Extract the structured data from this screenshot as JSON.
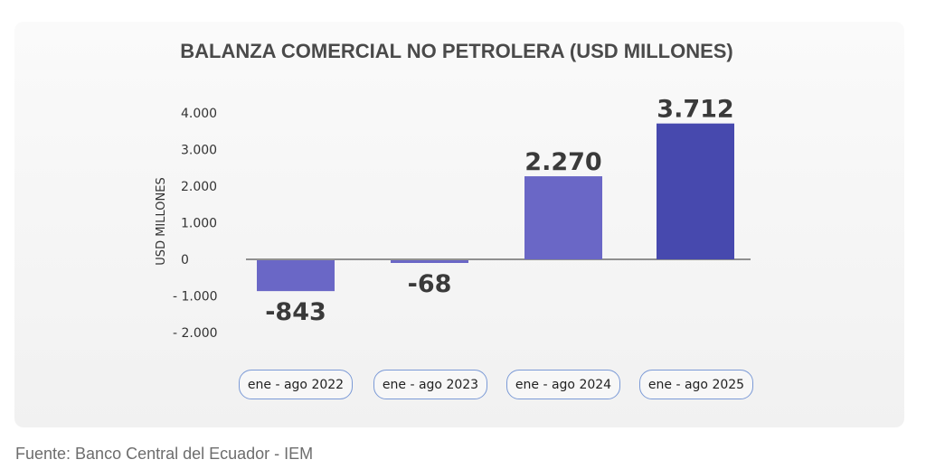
{
  "chart_data": {
    "type": "bar",
    "title": "BALANZA COMERCIAL NO PETROLERA (USD MILLONES)",
    "xlabel": "",
    "ylabel": "USD MILLONES",
    "ylim": [
      -2000,
      4000
    ],
    "yticks": [
      4000,
      3000,
      2000,
      1000,
      0,
      -1000,
      -2000
    ],
    "ytick_labels": [
      "4.000",
      "3.000",
      "2.000",
      "1.000",
      "0",
      "- 1.000",
      "- 2.000"
    ],
    "categories": [
      "ene - ago 2022",
      "ene - ago 2023",
      "ene - ago 2024",
      "ene - ago 2025"
    ],
    "values": [
      -843,
      -68,
      2270,
      3712
    ],
    "data_labels": [
      "-843",
      "-68",
      "2.270",
      "3.712"
    ],
    "bar_colors": [
      "#6a67c6",
      "#6a67c6",
      "#6a67c6",
      "#4749ae"
    ],
    "grid": false,
    "legend": "none"
  },
  "source": "Fuente: Banco Central del Ecuador - IEM"
}
